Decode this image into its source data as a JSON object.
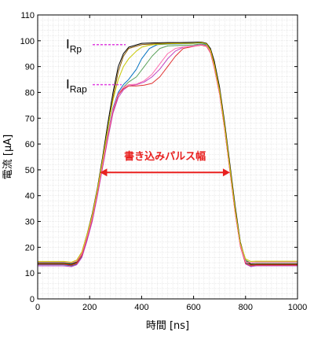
{
  "chart_data": {
    "type": "line",
    "xlabel": "時間 [ns]",
    "ylabel": "電流 [μA]",
    "xlim": [
      0,
      1000
    ],
    "ylim": [
      0,
      110
    ],
    "x_ticks": [
      0,
      200,
      400,
      600,
      800,
      1000
    ],
    "y_ticks": [
      0,
      10,
      20,
      30,
      40,
      50,
      60,
      70,
      80,
      90,
      100,
      110
    ],
    "grid": true,
    "annotations": {
      "irp_main": "I",
      "irp_sub": "Rp",
      "irp_value": 98.5,
      "irap_main": "I",
      "irap_sub": "Rap",
      "irap_value": 83,
      "pulse_width_label": "書き込みパルス幅",
      "pulse_width_y": 49,
      "pulse_width_x": [
        240,
        740
      ]
    },
    "series": [
      {
        "color": "#000000",
        "x": [
          0,
          100,
          130,
          150,
          170,
          190,
          210,
          230,
          250,
          270,
          290,
          310,
          330,
          350,
          400,
          450,
          500,
          550,
          600,
          630,
          650,
          665,
          680,
          700,
          720,
          740,
          760,
          780,
          800,
          820,
          840,
          1000
        ],
        "y": [
          13.8,
          13.8,
          13.5,
          14.2,
          18,
          25,
          33,
          43,
          55,
          68,
          80,
          90,
          95,
          97.5,
          99,
          99.2,
          99.3,
          99.3,
          99.4,
          99.5,
          99,
          97,
          92,
          82,
          68,
          52,
          36,
          22,
          15,
          13.5,
          13.6,
          13.6
        ]
      },
      {
        "color": "#8b5a00",
        "x": [
          0,
          100,
          130,
          150,
          170,
          190,
          210,
          230,
          250,
          270,
          290,
          310,
          330,
          350,
          400,
          450,
          500,
          550,
          600,
          630,
          650,
          665,
          680,
          700,
          720,
          740,
          760,
          780,
          800,
          820,
          840,
          1000
        ],
        "y": [
          13.6,
          13.6,
          13.2,
          14,
          17.5,
          24,
          32,
          42,
          54,
          66,
          78,
          88,
          94,
          97,
          98.5,
          98.8,
          99,
          99,
          99,
          99.3,
          98.8,
          96.5,
          91,
          81,
          67,
          51,
          35,
          21,
          14.5,
          13.2,
          13.4,
          13.4
        ]
      },
      {
        "color": "#0070c0",
        "x": [
          0,
          100,
          130,
          150,
          170,
          190,
          210,
          230,
          250,
          270,
          290,
          310,
          330,
          350,
          380,
          400,
          430,
          460,
          500,
          550,
          600,
          630,
          650,
          665,
          680,
          700,
          720,
          740,
          760,
          780,
          800,
          820,
          840,
          1000
        ],
        "y": [
          13.2,
          13.2,
          12.8,
          13.5,
          16.5,
          23,
          31,
          41,
          53,
          64,
          74,
          80,
          83,
          85,
          89,
          93,
          97,
          98.5,
          98.7,
          98.8,
          98.9,
          99.2,
          98.5,
          96,
          90,
          80,
          66,
          50,
          34,
          21,
          14,
          12.8,
          13,
          13
        ]
      },
      {
        "color": "#5aa15a",
        "x": [
          0,
          100,
          130,
          150,
          170,
          190,
          210,
          230,
          250,
          270,
          290,
          310,
          330,
          350,
          380,
          410,
          440,
          470,
          500,
          550,
          600,
          630,
          650,
          665,
          680,
          700,
          720,
          740,
          760,
          780,
          800,
          820,
          840,
          1000
        ],
        "y": [
          14,
          14,
          13.8,
          14.5,
          18,
          24.5,
          32,
          42,
          53,
          64,
          73,
          79,
          82,
          84,
          86,
          90,
          94,
          97,
          98,
          98.2,
          98.4,
          98.8,
          98.2,
          96,
          90,
          80,
          66,
          50,
          34,
          21,
          15,
          14,
          14.2,
          14.2
        ]
      },
      {
        "color": "#c040c0",
        "x": [
          0,
          100,
          130,
          150,
          170,
          190,
          210,
          230,
          250,
          270,
          290,
          310,
          330,
          350,
          380,
          410,
          440,
          470,
          500,
          530,
          560,
          600,
          630,
          650,
          665,
          680,
          700,
          720,
          740,
          760,
          780,
          800,
          820,
          840,
          1000
        ],
        "y": [
          12.8,
          12.8,
          12.5,
          13.2,
          16,
          22.5,
          30,
          40,
          51,
          62,
          72,
          78,
          81,
          82.5,
          83,
          84,
          86,
          89,
          93,
          96,
          97.5,
          98,
          98.5,
          98,
          95.5,
          89.5,
          79.5,
          65.5,
          49.5,
          33.5,
          20.5,
          13.5,
          12.5,
          12.8,
          12.8
        ]
      },
      {
        "color": "#e03030",
        "x": [
          0,
          100,
          130,
          150,
          170,
          190,
          210,
          230,
          250,
          270,
          290,
          310,
          330,
          350,
          380,
          410,
          440,
          470,
          500,
          530,
          560,
          600,
          630,
          650,
          665,
          680,
          700,
          720,
          740,
          760,
          780,
          800,
          820,
          840,
          1000
        ],
        "y": [
          13.4,
          13.4,
          13,
          13.7,
          16.8,
          23.5,
          31,
          41,
          52,
          63,
          73,
          79,
          81.5,
          82.5,
          82.5,
          82.8,
          83.5,
          86,
          90,
          94,
          97,
          97.8,
          98.3,
          97.8,
          95.3,
          89.3,
          79.3,
          65.3,
          49.3,
          33.3,
          20.3,
          13.7,
          12.9,
          13.1,
          13.1
        ]
      },
      {
        "color": "#ff6fb0",
        "x": [
          0,
          100,
          130,
          150,
          170,
          190,
          210,
          230,
          250,
          270,
          290,
          310,
          330,
          350,
          380,
          410,
          440,
          470,
          500,
          530,
          560,
          600,
          630,
          650,
          665,
          680,
          700,
          720,
          740,
          760,
          780,
          800,
          820,
          840,
          1000
        ],
        "y": [
          14.3,
          14.3,
          14,
          14.6,
          17.5,
          24,
          31.5,
          41.5,
          52.5,
          63.5,
          73.5,
          79.5,
          82,
          83,
          83.2,
          84.5,
          87,
          91,
          95,
          97,
          97.6,
          97.9,
          98.4,
          98,
          95.6,
          89.6,
          79.6,
          65.6,
          49.6,
          33.6,
          20.6,
          14.3,
          14,
          14.3,
          14.3
        ]
      },
      {
        "color": "#c8c800",
        "x": [
          0,
          100,
          130,
          150,
          170,
          190,
          210,
          230,
          250,
          270,
          290,
          310,
          330,
          350,
          380,
          400,
          430,
          460,
          500,
          550,
          600,
          630,
          650,
          665,
          680,
          700,
          720,
          740,
          760,
          780,
          800,
          820,
          840,
          1000
        ],
        "y": [
          14.5,
          14.5,
          14.2,
          15,
          18.2,
          25,
          32.5,
          42.5,
          54,
          66,
          77,
          85,
          90,
          93,
          96,
          97.5,
          98.3,
          98.6,
          98.8,
          98.9,
          99,
          99.3,
          98.7,
          96.3,
          90.5,
          80.5,
          66.5,
          50.5,
          34.5,
          21.5,
          15.5,
          14.5,
          14.6,
          14.6
        ]
      }
    ]
  }
}
